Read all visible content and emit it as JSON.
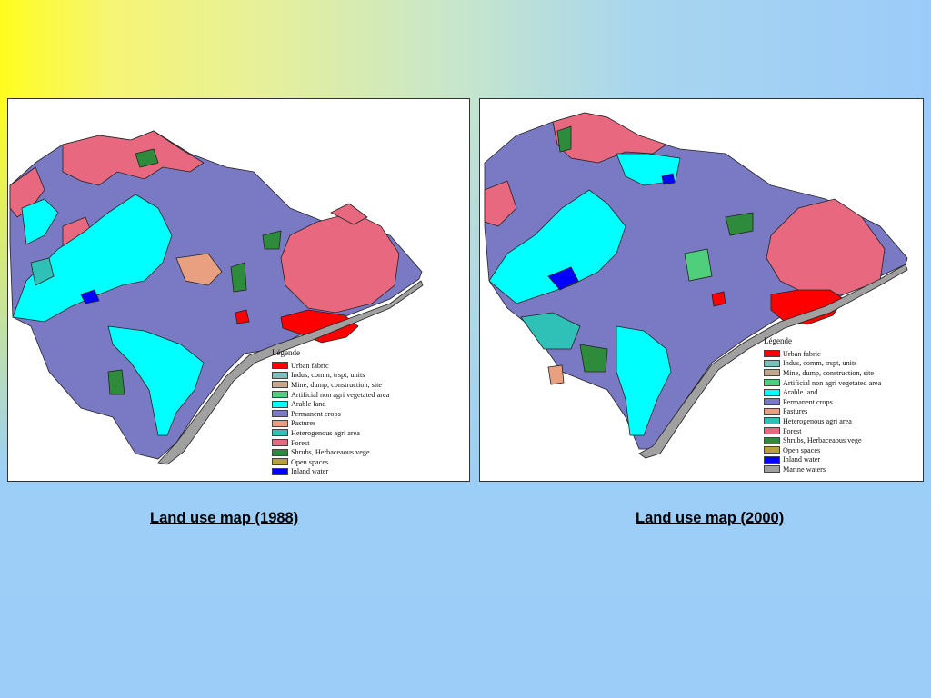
{
  "maps": [
    {
      "id": "1988",
      "caption": "Land use map (1988)",
      "legend_title": "Légende",
      "legend": [
        {
          "label": "Urban fabric",
          "color": "#ff0000"
        },
        {
          "label": "Indus, comm, trspt, units",
          "color": "#79c0bd"
        },
        {
          "label": "Mine, dump, construction, site",
          "color": "#c7a78c"
        },
        {
          "label": "Artificial non agri vegetated area",
          "color": "#4fcf7c"
        },
        {
          "label": "Arable land",
          "color": "#00ffff"
        },
        {
          "label": "Permanent crops",
          "color": "#7a7ac4"
        },
        {
          "label": "Pastures",
          "color": "#e8a080"
        },
        {
          "label": "Heterogenous agri area",
          "color": "#2fc0b8"
        },
        {
          "label": "Forest",
          "color": "#e8687f"
        },
        {
          "label": "Shrubs, Herbaceaous vege",
          "color": "#2e8b3c"
        },
        {
          "label": "Open spaces",
          "color": "#b8a040"
        },
        {
          "label": "Inland water",
          "color": "#0000ff"
        }
      ]
    },
    {
      "id": "2000",
      "caption": "Land use map (2000)",
      "legend_title": "Légende",
      "legend": [
        {
          "label": "Urban fabric",
          "color": "#ff0000"
        },
        {
          "label": "Indus, comm, trspt, units",
          "color": "#79c0bd"
        },
        {
          "label": "Mine, dump, construction, site",
          "color": "#c7a78c"
        },
        {
          "label": "Artificial non agri vegetated area",
          "color": "#4fcf7c"
        },
        {
          "label": "Arable land",
          "color": "#00ffff"
        },
        {
          "label": "Permanent crops",
          "color": "#7a7ac4"
        },
        {
          "label": "Pastures",
          "color": "#e8a080"
        },
        {
          "label": "Heterogenous agri area",
          "color": "#2fc0b8"
        },
        {
          "label": "Forest",
          "color": "#e8687f"
        },
        {
          "label": "Shrubs, Herbaceaous vege",
          "color": "#2e8b3c"
        },
        {
          "label": "Open spaces",
          "color": "#b8a040"
        },
        {
          "label": "Inland water",
          "color": "#0000ff"
        },
        {
          "label": "Marine waters",
          "color": "#a0a0a0"
        }
      ]
    }
  ]
}
